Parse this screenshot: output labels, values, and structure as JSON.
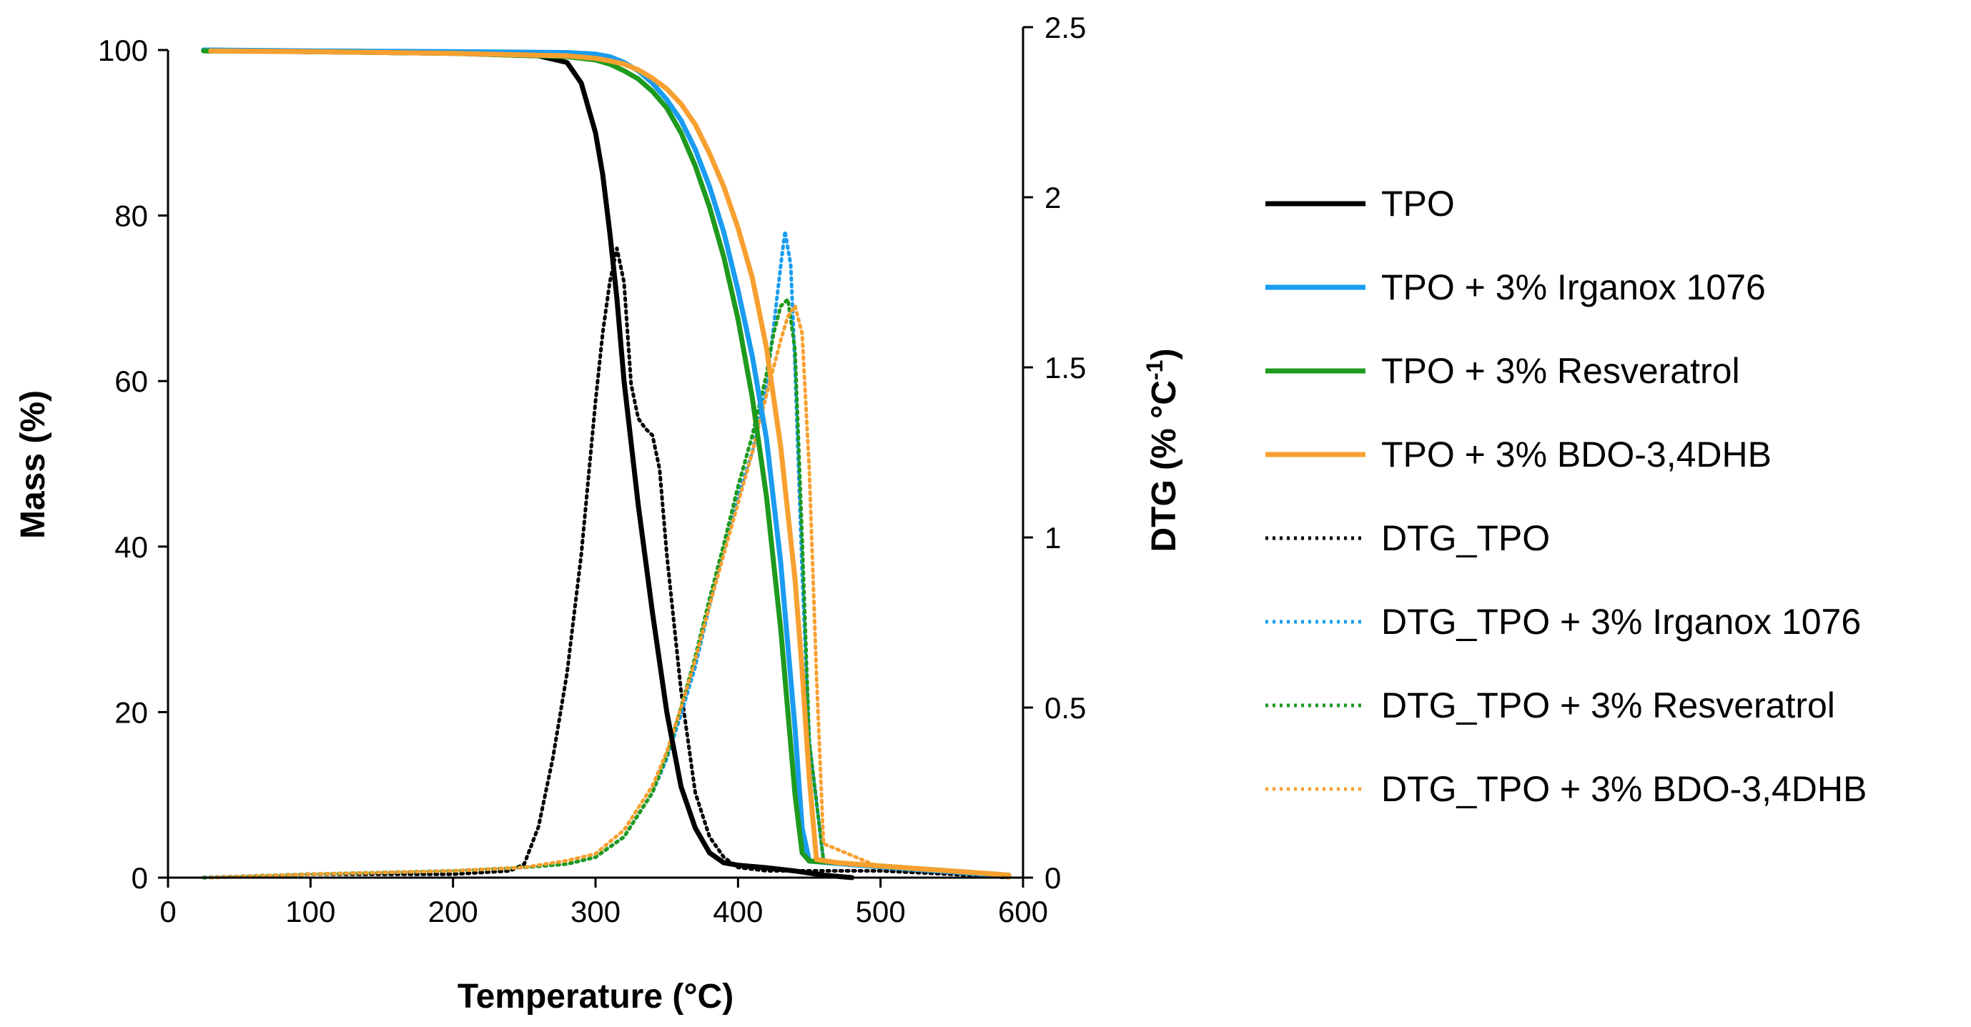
{
  "chart_data": {
    "type": "line",
    "title": "",
    "xlabel": "Temperature (°C)",
    "ylabel": "Mass (%)",
    "y2label": "DTG (% °C⁻¹)",
    "xlim": [
      0,
      600
    ],
    "ylim": [
      0,
      100
    ],
    "y2lim": [
      0,
      2.5
    ],
    "xticks": [
      "0",
      "100",
      "200",
      "300",
      "400",
      "500",
      "600"
    ],
    "yticks": [
      "0",
      "20",
      "40",
      "60",
      "80",
      "100"
    ],
    "y2ticks": [
      "0",
      "0.5",
      "1",
      "1.5",
      "2",
      "2.5"
    ],
    "grid": false,
    "legend_position": "right",
    "colors": {
      "tpo": "#000000",
      "irganox": "#1a9cf0",
      "resveratrol": "#1e9a1e",
      "bdo": "#f7a030"
    },
    "series": [
      {
        "name": "TPO",
        "axis": "mass",
        "style": "solid",
        "color": "#000000",
        "x": [
          25,
          100,
          200,
          260,
          280,
          290,
          300,
          305,
          310,
          315,
          320,
          330,
          340,
          350,
          360,
          370,
          380,
          390,
          400,
          420,
          440,
          460,
          480
        ],
        "y": [
          100,
          99.8,
          99.6,
          99.3,
          98.5,
          96,
          90,
          85,
          78,
          70,
          60,
          45,
          32,
          20,
          11,
          6,
          3,
          1.8,
          1.5,
          1.2,
          0.8,
          0.3,
          0
        ]
      },
      {
        "name": "TPO + 3% Irganox 1076",
        "axis": "mass",
        "style": "solid",
        "color": "#1a9cf0",
        "x": [
          25,
          100,
          200,
          280,
          300,
          310,
          320,
          330,
          340,
          350,
          360,
          370,
          380,
          390,
          400,
          410,
          420,
          430,
          440,
          445,
          450,
          470,
          500,
          550,
          590
        ],
        "y": [
          100,
          99.9,
          99.8,
          99.7,
          99.5,
          99.2,
          98.5,
          97.5,
          96,
          94,
          91.5,
          88,
          83.5,
          78,
          71,
          63,
          53,
          38,
          18,
          6,
          2,
          1.7,
          1.3,
          0.7,
          0.2
        ]
      },
      {
        "name": "TPO + 3% Resveratrol",
        "axis": "mass",
        "style": "solid",
        "color": "#1e9a1e",
        "x": [
          25,
          100,
          200,
          280,
          300,
          310,
          320,
          330,
          340,
          350,
          360,
          370,
          380,
          390,
          400,
          410,
          420,
          430,
          440,
          445,
          450,
          470,
          500,
          550,
          590
        ],
        "y": [
          99.9,
          99.8,
          99.6,
          99.2,
          98.8,
          98.3,
          97.5,
          96.5,
          95,
          93,
          90,
          86,
          81,
          75,
          67.5,
          58,
          46,
          30,
          10,
          3,
          2,
          1.8,
          1.4,
          0.8,
          0.3
        ]
      },
      {
        "name": "TPO + 3% BDO-3,4DHB",
        "axis": "mass",
        "style": "solid",
        "color": "#f7a030",
        "x": [
          30,
          100,
          200,
          280,
          300,
          310,
          320,
          330,
          340,
          350,
          360,
          370,
          380,
          390,
          400,
          410,
          420,
          430,
          440,
          445,
          450,
          455,
          470,
          500,
          550,
          590
        ],
        "y": [
          99.9,
          99.8,
          99.6,
          99.3,
          99.0,
          98.7,
          98.3,
          97.6,
          96.6,
          95.3,
          93.5,
          91,
          87.5,
          83.5,
          78.5,
          72.5,
          64,
          52,
          36,
          25,
          12,
          2.2,
          1.8,
          1.4,
          0.8,
          0.3
        ]
      },
      {
        "name": "DTG_TPO",
        "axis": "dtg",
        "style": "dotted",
        "color": "#000000",
        "x": [
          25,
          100,
          200,
          240,
          250,
          260,
          270,
          280,
          290,
          300,
          305,
          310,
          315,
          320,
          325,
          330,
          335,
          340,
          345,
          350,
          360,
          370,
          380,
          390,
          400,
          420,
          450,
          500,
          550,
          590
        ],
        "y": [
          0,
          0.01,
          0.01,
          0.02,
          0.04,
          0.15,
          0.35,
          0.6,
          0.95,
          1.4,
          1.6,
          1.75,
          1.85,
          1.75,
          1.45,
          1.35,
          1.32,
          1.3,
          1.2,
          0.95,
          0.55,
          0.25,
          0.12,
          0.06,
          0.03,
          0.02,
          0.02,
          0.02,
          0.01,
          0
        ]
      },
      {
        "name": "DTG_TPO + 3% Irganox 1076",
        "axis": "dtg",
        "style": "dotted",
        "color": "#1a9cf0",
        "x": [
          25,
          100,
          200,
          250,
          280,
          300,
          320,
          340,
          350,
          360,
          370,
          380,
          390,
          400,
          410,
          420,
          425,
          430,
          433,
          437,
          440,
          445,
          450,
          460,
          500,
          550,
          590
        ],
        "y": [
          0,
          0.01,
          0.02,
          0.03,
          0.04,
          0.06,
          0.12,
          0.25,
          0.35,
          0.48,
          0.62,
          0.8,
          0.97,
          1.12,
          1.25,
          1.45,
          1.62,
          1.8,
          1.9,
          1.8,
          1.5,
          0.9,
          0.4,
          0.05,
          0.03,
          0.02,
          0
        ]
      },
      {
        "name": "DTG_TPO + 3% Resveratrol",
        "axis": "dtg",
        "style": "dotted",
        "color": "#1e9a1e",
        "x": [
          25,
          100,
          200,
          250,
          280,
          300,
          320,
          340,
          350,
          360,
          370,
          380,
          390,
          400,
          410,
          420,
          425,
          430,
          435,
          440,
          445,
          450,
          460,
          500,
          550,
          590
        ],
        "y": [
          0,
          0.01,
          0.02,
          0.03,
          0.04,
          0.06,
          0.12,
          0.25,
          0.36,
          0.5,
          0.65,
          0.82,
          0.98,
          1.15,
          1.3,
          1.48,
          1.6,
          1.68,
          1.7,
          1.55,
          1.0,
          0.4,
          0.05,
          0.03,
          0.02,
          0
        ]
      },
      {
        "name": "DTG_TPO + 3% BDO-3,4DHB",
        "axis": "dtg",
        "style": "dotted",
        "color": "#f7a030",
        "x": [
          30,
          100,
          200,
          250,
          280,
          300,
          320,
          340,
          350,
          360,
          370,
          380,
          390,
          400,
          410,
          420,
          430,
          435,
          440,
          445,
          450,
          455,
          460,
          500,
          550,
          590
        ],
        "y": [
          0,
          0.01,
          0.02,
          0.03,
          0.05,
          0.07,
          0.14,
          0.27,
          0.37,
          0.5,
          0.64,
          0.8,
          0.95,
          1.1,
          1.25,
          1.42,
          1.58,
          1.65,
          1.68,
          1.6,
          1.2,
          0.6,
          0.1,
          0.03,
          0.02,
          0
        ]
      }
    ]
  },
  "legend": {
    "entries": [
      "TPO",
      "TPO + 3% Irganox 1076",
      "TPO + 3% Resveratrol",
      "TPO + 3% BDO-3,4DHB",
      "DTG_TPO",
      "DTG_TPO + 3% Irganox 1076",
      "DTG_TPO + 3% Resveratrol",
      "DTG_TPO + 3% BDO-3,4DHB"
    ]
  }
}
